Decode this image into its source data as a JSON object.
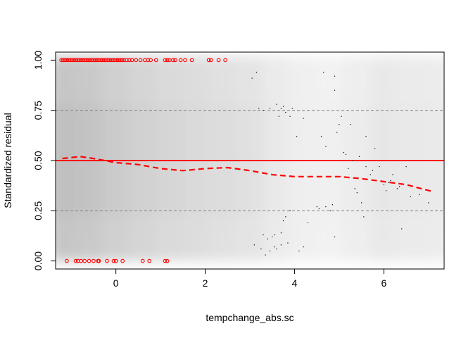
{
  "chart_data": {
    "type": "scatter",
    "title": "",
    "xlabel": "tempchange_abs.sc",
    "ylabel": "Standardized residual",
    "xlim": [
      -1.35,
      7.35
    ],
    "ylim": [
      -0.04,
      1.04
    ],
    "x_ticks": [
      0,
      2,
      4,
      6
    ],
    "x_tick_labels": [
      "0",
      "2",
      "4",
      "6"
    ],
    "y_ticks": [
      0.0,
      0.25,
      0.5,
      0.75,
      1.0
    ],
    "y_tick_labels": [
      "0.00",
      "0.25",
      "0.50",
      "0.75",
      "1.00"
    ],
    "reference_lines": {
      "solid": {
        "y": 0.5,
        "color": "#ff0000"
      },
      "dashed": [
        {
          "y": 0.25,
          "color": "#808080"
        },
        {
          "y": 0.75,
          "color": "#808080"
        }
      ]
    },
    "colors": {
      "outlier": "#ff0000",
      "points": "#000000",
      "smooth": "#ff0000",
      "density": "#808080"
    },
    "series": [
      {
        "role": "smoothed-residual-trend",
        "style": "dashed-line",
        "x": [
          -1.2,
          -0.8,
          -0.5,
          0.0,
          0.5,
          1.0,
          1.5,
          2.0,
          2.5,
          3.0,
          3.5,
          4.0,
          4.5,
          5.0,
          5.5,
          6.0,
          6.5,
          7.1
        ],
        "y": [
          0.51,
          0.52,
          0.51,
          0.49,
          0.48,
          0.46,
          0.45,
          0.46,
          0.465,
          0.45,
          0.43,
          0.42,
          0.42,
          0.42,
          0.41,
          0.395,
          0.38,
          0.345
        ]
      },
      {
        "role": "outliers-top",
        "style": "open-circle",
        "x": [
          -1.22,
          -1.18,
          -1.14,
          -1.1,
          -1.06,
          -1.02,
          -0.98,
          -0.94,
          -0.9,
          -0.86,
          -0.82,
          -0.78,
          -0.74,
          -0.7,
          -0.66,
          -0.62,
          -0.58,
          -0.54,
          -0.5,
          -0.46,
          -0.42,
          -0.38,
          -0.34,
          -0.3,
          -0.26,
          -0.22,
          -0.18,
          -0.14,
          -0.1,
          -0.06,
          -0.02,
          0.02,
          0.06,
          0.1,
          0.14,
          0.18,
          0.24,
          0.3,
          0.36,
          0.45,
          0.55,
          0.65,
          0.72,
          0.78,
          0.9,
          1.1,
          1.15,
          1.2,
          1.28,
          1.33,
          1.45,
          1.55,
          1.7,
          2.08,
          2.13,
          2.3,
          2.45
        ],
        "y": [
          1,
          1,
          1,
          1,
          1,
          1,
          1,
          1,
          1,
          1,
          1,
          1,
          1,
          1,
          1,
          1,
          1,
          1,
          1,
          1,
          1,
          1,
          1,
          1,
          1,
          1,
          1,
          1,
          1,
          1,
          1,
          1,
          1,
          1,
          1,
          1,
          1,
          1,
          1,
          1,
          1,
          1,
          1,
          1,
          1,
          1,
          1,
          1,
          1,
          1,
          1,
          1,
          1,
          1,
          1,
          1,
          1
        ]
      },
      {
        "role": "outliers-bottom",
        "style": "open-circle",
        "x": [
          -1.1,
          -0.9,
          -0.85,
          -0.78,
          -0.7,
          -0.6,
          -0.5,
          -0.4,
          -0.38,
          -0.2,
          -0.05,
          0.0,
          0.15,
          0.6,
          0.75,
          1.1,
          1.15
        ],
        "y": [
          0,
          0,
          0,
          0,
          0,
          0,
          0,
          0,
          0,
          0,
          0,
          0,
          0,
          0,
          0,
          0,
          0
        ]
      },
      {
        "role": "data-points",
        "style": "dot",
        "x": [
          3.05,
          3.15,
          3.2,
          3.3,
          3.45,
          3.6,
          3.65,
          3.7,
          3.75,
          3.8,
          3.9,
          3.95,
          3.3,
          3.4,
          3.5,
          3.55,
          3.7,
          3.75,
          3.8,
          3.9,
          4.1,
          4.2,
          4.3,
          4.5,
          4.55,
          4.6,
          4.7,
          4.8,
          4.85,
          4.9,
          4.95,
          5.0,
          5.05,
          5.1,
          5.2,
          5.3,
          5.35,
          5.4,
          5.5,
          5.55,
          5.6,
          5.7,
          5.8,
          5.9,
          6.0,
          6.05,
          6.1,
          6.2,
          6.3,
          6.4,
          6.5,
          6.6,
          6.8,
          7.0,
          3.1,
          3.25,
          3.35,
          3.45,
          3.55,
          3.6,
          3.7,
          3.85,
          4.05,
          4.2,
          4.65,
          4.9,
          5.15,
          5.25,
          5.45,
          5.75,
          6.15,
          6.35,
          4.9,
          4.7,
          5.6
        ],
        "y": [
          0.91,
          0.94,
          0.76,
          0.75,
          0.76,
          0.78,
          0.72,
          0.76,
          0.77,
          0.74,
          0.72,
          0.76,
          0.13,
          0.11,
          0.12,
          0.13,
          0.14,
          0.2,
          0.22,
          0.25,
          0.05,
          0.07,
          0.19,
          0.27,
          0.26,
          0.62,
          0.27,
          0.25,
          0.28,
          0.12,
          0.64,
          0.68,
          0.72,
          0.54,
          0.46,
          0.5,
          0.36,
          0.34,
          0.29,
          0.22,
          0.47,
          0.43,
          0.56,
          0.47,
          0.38,
          0.35,
          0.39,
          0.43,
          0.36,
          0.16,
          0.47,
          0.32,
          0.33,
          0.29,
          0.08,
          0.06,
          0.03,
          0.05,
          0.07,
          0.06,
          0.08,
          0.09,
          0.62,
          0.71,
          0.94,
          0.92,
          0.53,
          0.68,
          0.52,
          0.45,
          0.4,
          0.37,
          0.85,
          0.57,
          0.62
        ]
      }
    ],
    "density_background": {
      "description_x_bins": [
        -1.2,
        -0.6,
        0.0,
        0.6,
        1.2,
        1.8,
        2.4,
        3.0,
        3.6,
        4.2,
        4.8,
        5.4,
        6.0,
        6.6,
        7.2
      ],
      "column_intensity": [
        0.85,
        0.8,
        0.7,
        0.62,
        0.55,
        0.5,
        0.45,
        0.4,
        0.3,
        0.22,
        0.2,
        0.25,
        0.32,
        0.3,
        0.28
      ]
    }
  }
}
